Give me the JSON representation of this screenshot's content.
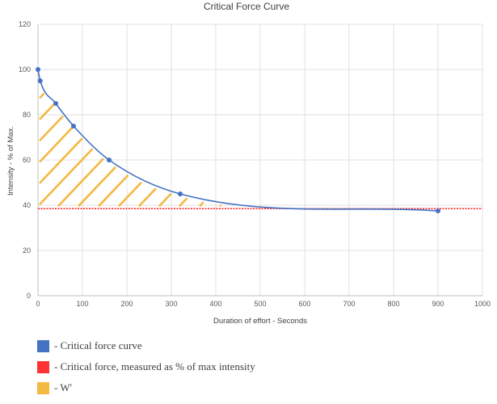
{
  "chart_data": {
    "type": "line",
    "title": "Critical Force Curve",
    "xlabel": "Duration of effort - Seconds",
    "ylabel": "Intensity - % of Max.",
    "xlim": [
      0,
      1000
    ],
    "ylim": [
      0,
      120
    ],
    "x_ticks": [
      0,
      100,
      200,
      300,
      400,
      500,
      600,
      700,
      800,
      900,
      1000
    ],
    "y_ticks": [
      0,
      20,
      40,
      60,
      80,
      100,
      120
    ],
    "grid": true,
    "series": [
      {
        "name": "Critical force curve",
        "color": "#4472C4",
        "marker": "circle",
        "smooth": true,
        "points": [
          {
            "x": 0,
            "y": 100
          },
          {
            "x": 5,
            "y": 95
          },
          {
            "x": 40,
            "y": 85
          },
          {
            "x": 80,
            "y": 75
          },
          {
            "x": 160,
            "y": 60
          },
          {
            "x": 320,
            "y": 45
          },
          {
            "x": 900,
            "y": 37.5
          }
        ]
      }
    ],
    "reference_line": {
      "name": "Critical force, measured as % of max intensity",
      "y": 38.5,
      "color": "#FF0000",
      "style": "dotted"
    },
    "shaded_area": {
      "name": "W'",
      "color": "#F4B942",
      "pattern": "diagonal-hatch",
      "x_range": [
        0,
        550
      ],
      "between": "curve and reference line"
    }
  },
  "legend": {
    "placement": "bottom-left",
    "items": [
      {
        "label": "- Critical force curve",
        "color": "#4472C4"
      },
      {
        "label": "- Critical force, measured as % of max intensity",
        "color": "#FF3333"
      },
      {
        "label": "- W'",
        "color": "#F4B942"
      }
    ]
  }
}
